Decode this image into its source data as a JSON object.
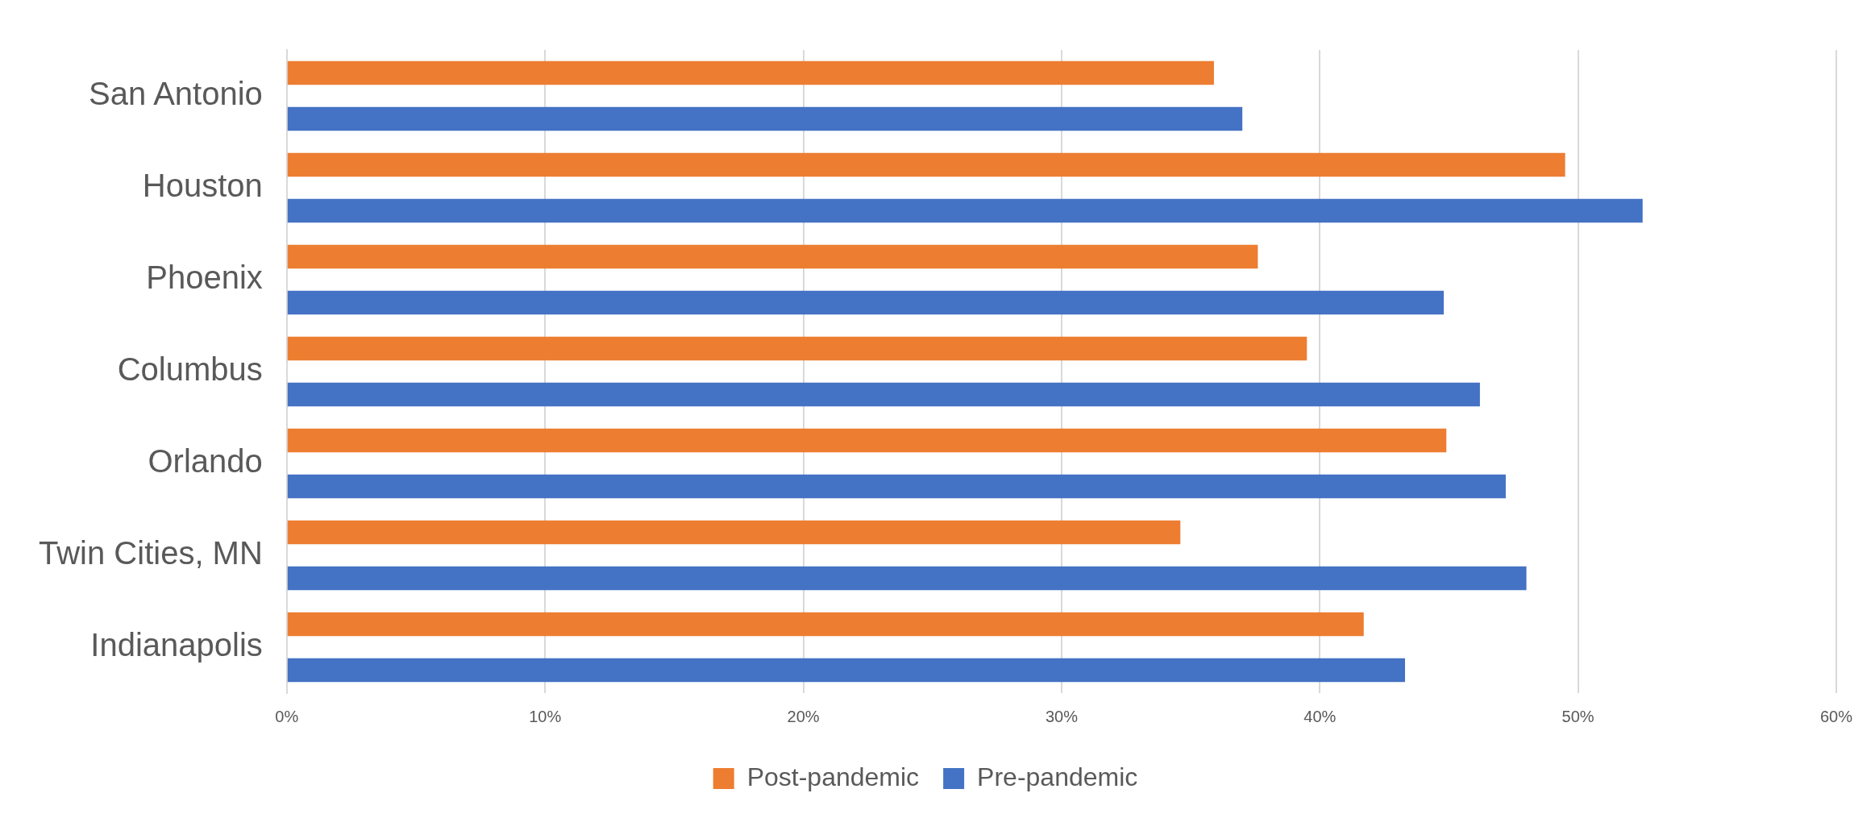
{
  "chart_data": {
    "type": "bar",
    "orientation": "horizontal",
    "categories": [
      "San Antonio",
      "Houston",
      "Phoenix",
      "Columbus",
      "Orlando",
      "Twin Cities, MN",
      "Indianapolis"
    ],
    "series": [
      {
        "name": "Post-pandemic",
        "color": "#ed7d31",
        "values": [
          35.9,
          49.5,
          37.6,
          39.5,
          44.9,
          34.6,
          41.7
        ]
      },
      {
        "name": "Pre-pandemic",
        "color": "#4472c4",
        "values": [
          37.0,
          52.5,
          44.8,
          46.2,
          47.2,
          48.0,
          43.3
        ]
      }
    ],
    "xlim": [
      0,
      60
    ],
    "xticks": [
      {
        "value": 0,
        "label": "0%"
      },
      {
        "value": 10,
        "label": "10%"
      },
      {
        "value": 20,
        "label": "20%"
      },
      {
        "value": 30,
        "label": "30%"
      },
      {
        "value": 40,
        "label": "40%"
      },
      {
        "value": 50,
        "label": "50%"
      },
      {
        "value": 60,
        "label": "60%"
      }
    ],
    "grid": "x",
    "legend": "bottom"
  }
}
